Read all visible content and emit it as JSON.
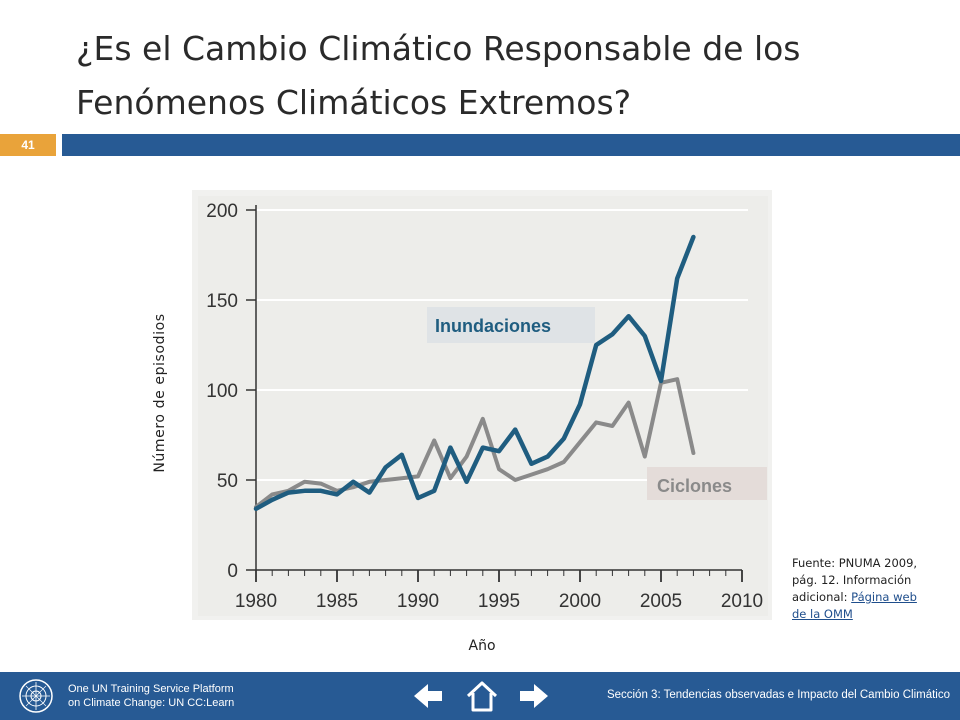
{
  "slide": {
    "title": "¿Es el Cambio Climático Responsable de los Fenómenos Climáticos Extremos?",
    "number": "41"
  },
  "chart_labels": {
    "ylabel": "Número de episodios",
    "xlabel": "Año"
  },
  "source": {
    "text": "Fuente: PNUMA 2009, pág. 12. Información adicional: ",
    "link": "Página web de la OMM"
  },
  "footer": {
    "platform_line1": "One UN Training Service Platform",
    "platform_line2": "on Climate Change: UN CC:Learn",
    "section": "Sección 3: Tendencias observadas e Impacto del Cambio Climático",
    "nav_icons": [
      "arrow-left-icon",
      "home-icon",
      "arrow-right-icon"
    ]
  },
  "colors": {
    "accent_bar": "#275a94",
    "slide_number_bg": "#e9a33a",
    "floods_line": "#1f5d80",
    "cyclones_line": "#8a8a8a",
    "plot_bg": "#ededea"
  },
  "chart_data": {
    "type": "line",
    "xlabel": "",
    "ylabel": "",
    "xlim": [
      1980,
      2010
    ],
    "ylim": [
      0,
      200
    ],
    "xticks": [
      1980,
      1985,
      1990,
      1995,
      2000,
      2005,
      2010
    ],
    "yticks": [
      0,
      50,
      100,
      150,
      200
    ],
    "grid": "horizontal",
    "series": [
      {
        "name": "Inundaciones",
        "x": [
          1980,
          1981,
          1982,
          1983,
          1984,
          1985,
          1986,
          1987,
          1988,
          1989,
          1990,
          1991,
          1992,
          1993,
          1994,
          1995,
          1996,
          1997,
          1998,
          1999,
          2000,
          2001,
          2002,
          2003,
          2004,
          2005,
          2006,
          2007
        ],
        "values": [
          34,
          39,
          43,
          44,
          44,
          42,
          49,
          43,
          57,
          64,
          40,
          44,
          68,
          49,
          68,
          66,
          78,
          59,
          63,
          73,
          92,
          125,
          131,
          141,
          130,
          105,
          162,
          185
        ]
      },
      {
        "name": "Ciclones",
        "x": [
          1980,
          1981,
          1982,
          1983,
          1984,
          1985,
          1986,
          1987,
          1988,
          1989,
          1990,
          1991,
          1992,
          1993,
          1994,
          1995,
          1996,
          1997,
          1998,
          1999,
          2000,
          2001,
          2002,
          2003,
          2004,
          2005,
          2006,
          2007
        ],
        "values": [
          35,
          42,
          44,
          49,
          48,
          44,
          46,
          49,
          50,
          51,
          52,
          72,
          51,
          63,
          84,
          56,
          50,
          53,
          56,
          60,
          71,
          82,
          80,
          93,
          63,
          104,
          106,
          65
        ]
      }
    ]
  }
}
